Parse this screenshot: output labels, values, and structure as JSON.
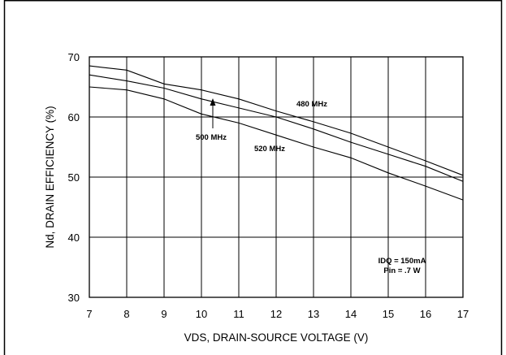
{
  "chart_data": {
    "type": "line",
    "xlabel": "VDS, DRAIN-SOURCE VOLTAGE (V)",
    "ylabel": "Nd, DRAIN EFFICIENCY  (%)",
    "xlim": [
      7,
      17
    ],
    "ylim": [
      30,
      70
    ],
    "x_ticks": [
      "7",
      "8",
      "9",
      "10",
      "11",
      "12",
      "13",
      "14",
      "15",
      "16",
      "17"
    ],
    "y_ticks": [
      "30",
      "40",
      "50",
      "60",
      "70"
    ],
    "grid": true,
    "series": [
      {
        "name": "480 MHz",
        "points": [
          [
            7,
            68.5
          ],
          [
            8,
            67.8
          ],
          [
            9,
            65.5
          ],
          [
            10,
            64.5
          ],
          [
            11,
            63.0
          ],
          [
            12,
            61.0
          ],
          [
            13,
            59.2
          ],
          [
            14,
            57.3
          ],
          [
            15,
            55.0
          ],
          [
            16,
            52.7
          ],
          [
            17,
            50.3
          ]
        ]
      },
      {
        "name": "500 MHz",
        "points": [
          [
            7,
            67.0
          ],
          [
            8,
            66.0
          ],
          [
            9,
            64.8
          ],
          [
            10,
            63.0
          ],
          [
            11,
            61.5
          ],
          [
            12,
            60.0
          ],
          [
            13,
            58.0
          ],
          [
            14,
            55.8
          ],
          [
            15,
            53.8
          ],
          [
            16,
            51.8
          ],
          [
            17,
            49.3
          ]
        ]
      },
      {
        "name": "520 MHz",
        "points": [
          [
            7,
            65.0
          ],
          [
            8,
            64.5
          ],
          [
            9,
            63.0
          ],
          [
            10,
            60.5
          ],
          [
            11,
            59.0
          ],
          [
            12,
            57.0
          ],
          [
            13,
            55.0
          ],
          [
            14,
            53.2
          ],
          [
            15,
            50.7
          ],
          [
            16,
            48.5
          ],
          [
            17,
            46.2
          ]
        ]
      }
    ],
    "annotations": [
      {
        "text": "480 MHz"
      },
      {
        "text": "500 MHz"
      },
      {
        "text": "520 MHz"
      },
      {
        "text": "IDQ = 150mA"
      },
      {
        "text": "Pin = .7 W"
      }
    ]
  }
}
